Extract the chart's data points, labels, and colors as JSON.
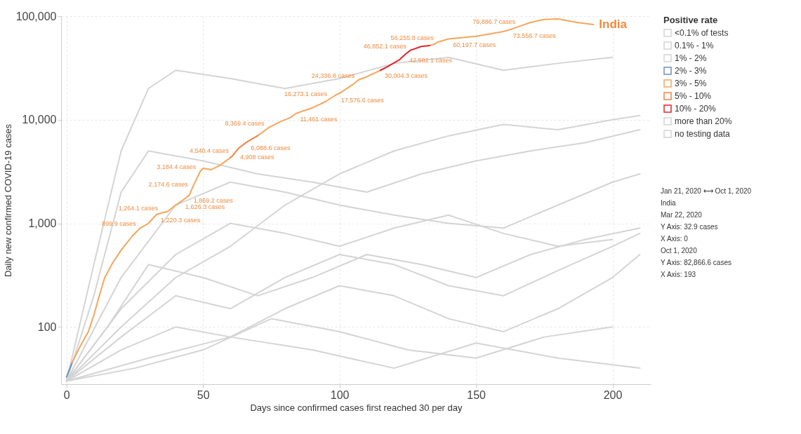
{
  "chart_data": {
    "type": "line",
    "xlabel": "Days since confirmed cases first reached 30 per day",
    "ylabel": "Daily new confirmed COVID-19 cases",
    "legend_title": "Positive rate",
    "legend": "right",
    "log": "y",
    "grid": true,
    "line_style": "solid",
    "marker": "none",
    "xlim": [
      -2,
      214
    ],
    "xticks": [
      0,
      50,
      100,
      150,
      200
    ],
    "ylim": [
      28,
      100000
    ],
    "yticks": [
      {
        "value": 100,
        "label": "100"
      },
      {
        "value": 1000,
        "label": "1,000"
      },
      {
        "value": 10000,
        "label": "10,000"
      },
      {
        "value": 100000,
        "label": "100,000"
      }
    ],
    "series": [
      {
        "name": "<0.1% of tests",
        "color": "#d4d4d4",
        "x": [
          0,
          10,
          20,
          30,
          40,
          60,
          80,
          100,
          120,
          140,
          160,
          180,
          200,
          null,
          0,
          20,
          40,
          60,
          80,
          100,
          120,
          140,
          160,
          180,
          200,
          210
        ],
        "values": [
          30,
          400,
          5000,
          20000,
          30000,
          25000,
          20000,
          25000,
          35000,
          40000,
          30000,
          35000,
          40000,
          null,
          30,
          300,
          1500,
          2500,
          2000,
          1500,
          1200,
          1000,
          900,
          1500,
          2500,
          3000
        ]
      },
      {
        "name": "0.1% - 1%",
        "color": "#d4d4d4",
        "x": [
          0,
          10,
          20,
          30,
          50,
          70,
          90,
          110,
          130,
          150,
          170,
          190,
          210,
          null,
          0,
          15,
          30,
          50,
          70,
          90,
          110,
          130,
          150,
          170,
          190,
          210
        ],
        "values": [
          30,
          200,
          2000,
          5000,
          4000,
          3000,
          2500,
          2000,
          3000,
          4000,
          5000,
          6000,
          8000,
          null,
          30,
          100,
          400,
          300,
          200,
          300,
          500,
          400,
          300,
          500,
          700,
          900
        ]
      },
      {
        "name": "1% - 2%",
        "color": "#d4d4d4",
        "x": [
          0,
          20,
          40,
          60,
          80,
          100,
          120,
          140,
          160,
          180,
          200,
          null,
          0,
          20,
          40,
          60,
          80,
          100,
          120,
          140,
          160,
          180,
          200,
          210
        ],
        "values": [
          30,
          150,
          500,
          1000,
          800,
          600,
          900,
          1200,
          800,
          600,
          700,
          null,
          30,
          60,
          100,
          80,
          150,
          250,
          200,
          120,
          90,
          150,
          300,
          500
        ]
      },
      {
        "name": "2% - 3%",
        "color": "#6b8fc7",
        "x": [
          0,
          2
        ],
        "values": [
          32.9,
          45
        ]
      },
      {
        "name": "3% - 5%",
        "color": "#f5a65b",
        "x": [
          2,
          5,
          8,
          10,
          12,
          14,
          17,
          20,
          24,
          27,
          30,
          33,
          35,
          37,
          40,
          42,
          45,
          46,
          49,
          50,
          53,
          56,
          60,
          null,
          70,
          74,
          78,
          82,
          84,
          86,
          90,
          95,
          97,
          99,
          100,
          105,
          107,
          110,
          115,
          null,
          133,
          135,
          136,
          140,
          150,
          160,
          162,
          166,
          170,
          175,
          180,
          187,
          193
        ],
        "values": [
          45,
          65,
          90,
          130,
          200,
          300,
          420,
          550,
          750,
          899.9,
          1000,
          1220.3,
          1264.1,
          1300,
          1500,
          1626.3,
          1869.2,
          2174.6,
          3184.4,
          3400,
          3300,
          3600,
          4300,
          null,
          7000,
          8369.4,
          9500,
          10500,
          11461,
          12000,
          13000,
          15000,
          16273.1,
          17576.6,
          18000,
          22000,
          24336.8,
          26000,
          30004.3,
          null,
          52000,
          54000,
          56255.8,
          60197.7,
          64000,
          71000,
          73556.7,
          79886.7,
          87000,
          93000,
          94000,
          87000,
          82866.6
        ]
      },
      {
        "name": "5% - 10%",
        "color": "#ee8443",
        "x": [
          60,
          61,
          62,
          63,
          66,
          70
        ],
        "values": [
          4300,
          4540.4,
          4908,
          5300,
          6088.6,
          7000
        ]
      },
      {
        "name": "10% - 20%",
        "color": "#e3242b",
        "x": [
          115,
          118,
          122,
          124,
          126,
          130,
          133
        ],
        "values": [
          30004.3,
          33000,
          38000,
          42582.1,
          46852.1,
          51000,
          52000
        ]
      },
      {
        "name": "more than 20%",
        "color": "#d4d4d4",
        "x": [
          0,
          20,
          40,
          60,
          80,
          100,
          120,
          140,
          160,
          180,
          200,
          210,
          null,
          0,
          30,
          60,
          90,
          120,
          150,
          180,
          210
        ],
        "values": [
          30,
          100,
          300,
          600,
          1500,
          3000,
          5000,
          7000,
          9000,
          8000,
          10000,
          11000,
          null,
          30,
          50,
          80,
          60,
          40,
          70,
          50,
          40
        ]
      },
      {
        "name": "no testing data",
        "color": "#d4d4d4",
        "x": [
          0,
          20,
          40,
          60,
          80,
          100,
          120,
          140,
          160,
          180,
          200,
          210,
          null,
          0,
          25,
          50,
          75,
          100,
          125,
          150,
          175,
          200
        ],
        "values": [
          30,
          80,
          200,
          150,
          300,
          500,
          400,
          250,
          200,
          350,
          600,
          800,
          null,
          30,
          40,
          60,
          120,
          90,
          60,
          50,
          80,
          100
        ]
      }
    ],
    "annotations": [
      {
        "text": "India",
        "x": 193,
        "y": 82866.6
      },
      {
        "text": "73,556.7 cases",
        "x": 162,
        "y": 73556.7
      },
      {
        "text": "79,886.7 cases",
        "x": 166,
        "y": 79886.7
      },
      {
        "text": "60,197.7 cases",
        "x": 140,
        "y": 60197.7
      },
      {
        "text": "46,852.1 cases",
        "x": 126,
        "y": 46852.1
      },
      {
        "text": "42,582.1 cases",
        "x": 124,
        "y": 42582.1
      },
      {
        "text": "56,255.8 cases",
        "x": 136,
        "y": 56255.8
      },
      {
        "text": "30,004.3 cases",
        "x": 115,
        "y": 30004.3
      },
      {
        "text": "24,336.8 cases",
        "x": 107,
        "y": 24336.8
      },
      {
        "text": "17,576.6 cases",
        "x": 99,
        "y": 17576.6
      },
      {
        "text": "16,273.1 cases",
        "x": 97,
        "y": 16273.1
      },
      {
        "text": "11,461 cases",
        "x": 84,
        "y": 11461
      },
      {
        "text": "8,369.4 cases",
        "x": 74,
        "y": 8369.4
      },
      {
        "text": "6,088.6 cases",
        "x": 66,
        "y": 6088.6
      },
      {
        "text": "4,540.4 cases",
        "x": 61,
        "y": 4540.4
      },
      {
        "text": "4,908 cases",
        "x": 62,
        "y": 4908
      },
      {
        "text": "3,184.4 cases",
        "x": 49,
        "y": 3184.4
      },
      {
        "text": "1,626.3 cases",
        "x": 42,
        "y": 1626.3
      },
      {
        "text": "2,174.6 cases",
        "x": 46,
        "y": 2174.6
      },
      {
        "text": "1,869.2 cases",
        "x": 45,
        "y": 1869.2
      },
      {
        "text": "1,264.1 cases",
        "x": 35,
        "y": 1264.1
      },
      {
        "text": "1,220.3 cases",
        "x": 33,
        "y": 1220.3
      },
      {
        "text": "899.9 cases",
        "x": 27,
        "y": 899.9
      },
      "Jan 21, 2020 ⟷ Oct 1, 2020",
      "India",
      "Mar 22, 2020",
      "Y Axis: 32.9 cases",
      "X Axis: 0",
      "Oct 1, 2020",
      "Y Axis: 82,866.6 cases",
      "X Axis: 193"
    ]
  }
}
